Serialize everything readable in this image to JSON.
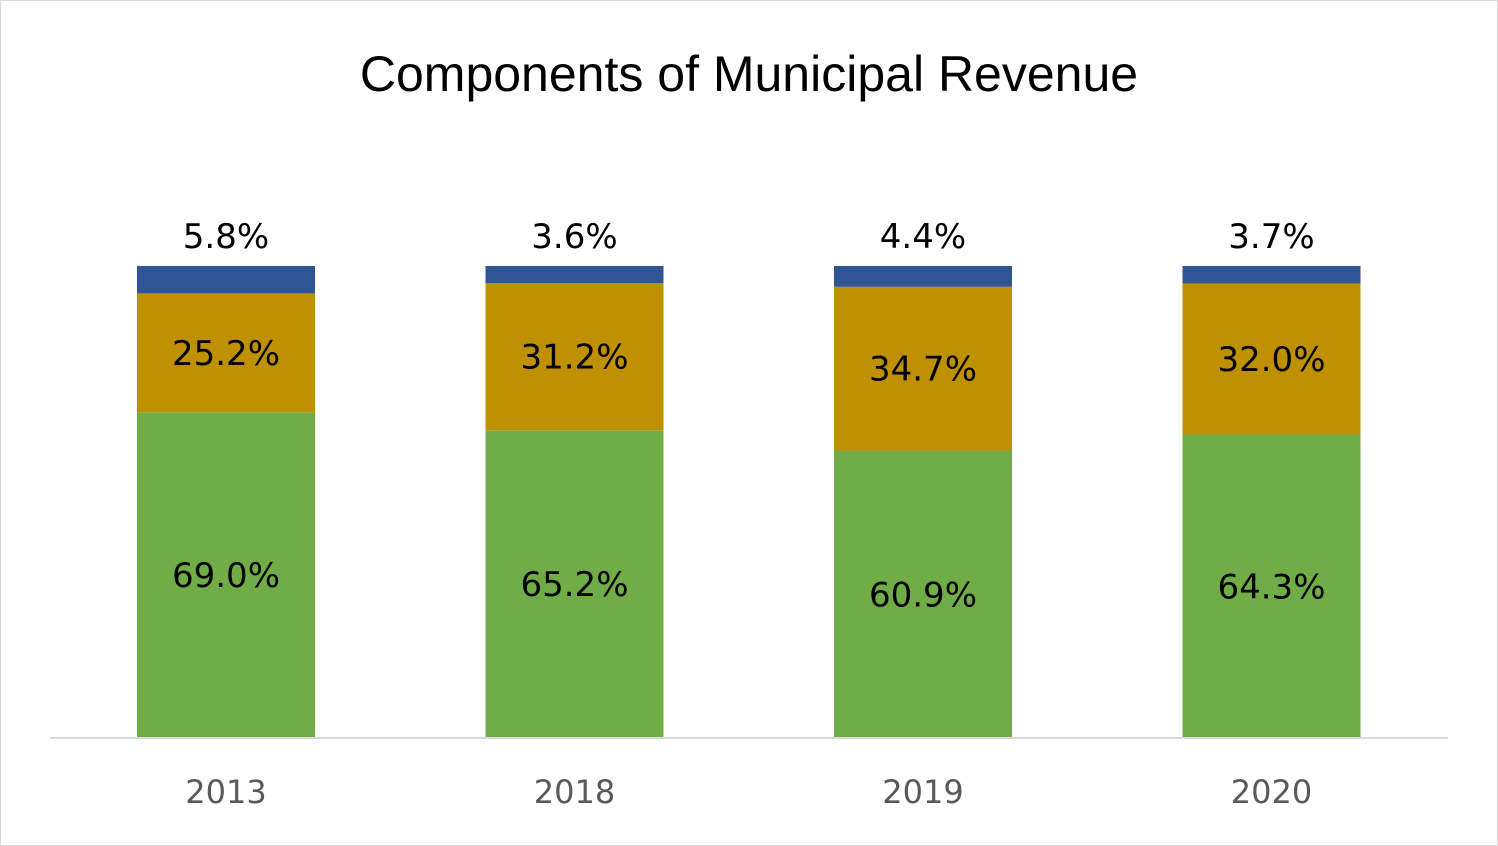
{
  "chart_data": {
    "type": "bar",
    "stacked": true,
    "title": "Components of Municipal Revenue",
    "xlabel": "",
    "ylabel": "",
    "ylim": [
      0,
      100
    ],
    "grid": false,
    "legend": "none",
    "categories": [
      "2013",
      "2018",
      "2019",
      "2020"
    ],
    "series": [
      {
        "values": [
          69.0,
          65.2,
          60.9,
          64.3
        ],
        "labels": [
          "69.0%",
          "65.2%",
          "60.9%",
          "64.3%"
        ],
        "color": "#70ad47"
      },
      {
        "values": [
          25.2,
          31.2,
          34.7,
          32.0
        ],
        "labels": [
          "25.2%",
          "31.2%",
          "34.7%",
          "32.0%"
        ],
        "color": "#bf9000"
      },
      {
        "values": [
          5.8,
          3.6,
          4.4,
          3.7
        ],
        "labels": [
          "5.8%",
          "3.6%",
          "4.4%",
          "3.7%"
        ],
        "color": "#2f5597"
      }
    ]
  }
}
